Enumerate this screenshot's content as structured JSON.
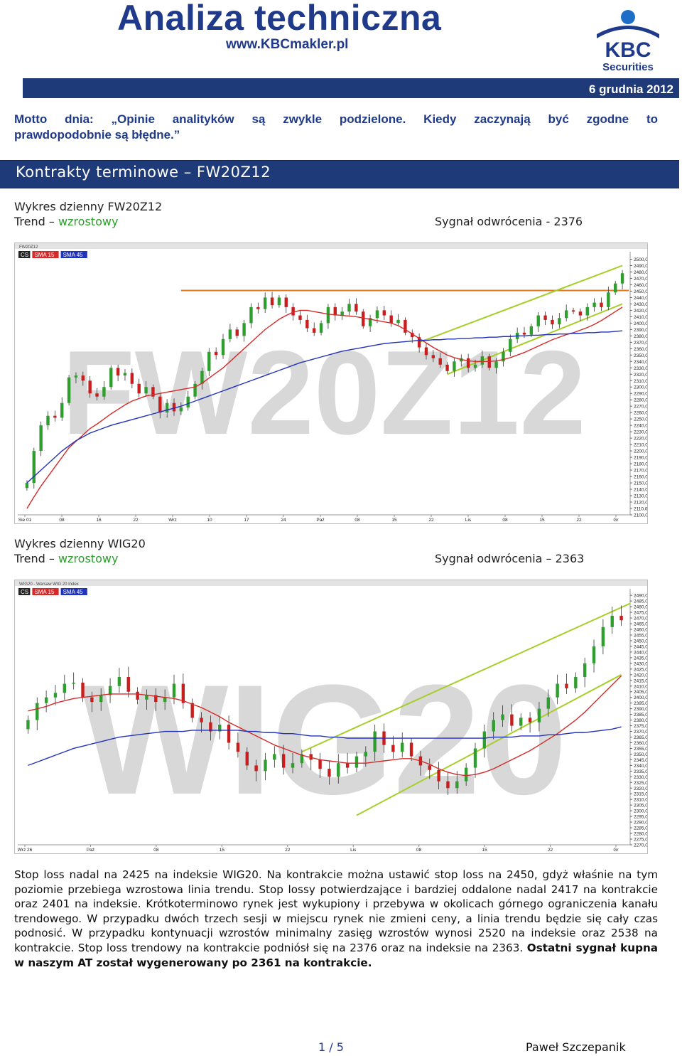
{
  "header": {
    "title": "Analiza techniczna",
    "url": "www.KBCmakler.pl",
    "logo_text": "KBC",
    "logo_sub": "Securities",
    "date": "6 grudnia 2012"
  },
  "motto": {
    "line1": "Motto dnia: „Opinie analityków są zwykle podzielone. Kiedy zaczynają być zgodne to",
    "line2": "prawdopodobnie są błędne.”"
  },
  "section": {
    "title": "Kontrakty terminowe – FW20Z12"
  },
  "chart1_caption": {
    "heading": "Wykres dzienny FW20Z12",
    "trend_label": "Trend –",
    "trend_value": "wzrostowy",
    "signal": "Sygnał odwrócenia - 2376"
  },
  "chart2_caption": {
    "heading": "Wykres dzienny WIG20",
    "trend_label": "Trend –",
    "trend_value": "wzrostowy",
    "signal": "Sygnał odwrócenia – 2363"
  },
  "body": {
    "text": "Stop loss nadal na 2425 na indeksie WIG20. Na kontrakcie można ustawić stop loss na 2450, gdyż właśnie na tym poziomie przebiega wzrostowa linia trendu. Stop lossy potwierdzające i bardziej oddalone nadal 2417 na kontrakcie oraz 2401 na indeksie. Krótkoterminowo rynek jest wykupiony i przebywa w okolicach górnego ograniczenia kanału trendowego. W przypadku dwóch trzech sesji w miejscu rynek nie zmieni ceny, a linia trendu będzie się cały czas podnosić. W przypadku kontynuacji wzrostów minimalny zasięg wzrostów wynosi 2520 na indeksie oraz 2538 na kontrakcie. Stop loss trendowy na kontrakcie podniósł się na 2376 oraz na indeksie na 2363. ",
    "bold": "Ostatni sygnał kupna w naszym AT został wygenerowany po 2361 na kontrakcie."
  },
  "footer": {
    "page": "1 / 5",
    "author": "Paweł Szczepanik"
  },
  "colors": {
    "brand": "#1e3a78",
    "trend_green": "#2aa02a",
    "candle_up": "#2e9e2e",
    "candle_down": "#c81e1e",
    "sma15": "#d42a2a",
    "sma45": "#2233bb",
    "channel": "#a6cf2a"
  },
  "chart_data": [
    {
      "type": "candlestick",
      "title": "FW20Z12",
      "watermark": "FW20Z12",
      "legend": [
        "CS",
        "SMA 15",
        "SMA 45"
      ],
      "x_ticks": [
        "Sie 01",
        "08",
        "16",
        "22",
        "Wrz",
        "10",
        "17",
        "24",
        "Paź",
        "08",
        "15",
        "22",
        "Lis",
        "08",
        "15",
        "22",
        "Gr"
      ],
      "y_ticks": [
        2500,
        2490,
        2480,
        2470,
        2460,
        2450,
        2440,
        2430,
        2420,
        2410,
        2400,
        2390,
        2380,
        2370,
        2360,
        2350,
        2340,
        2330,
        2320,
        2310,
        2300,
        2290,
        2280,
        2270,
        2260,
        2250,
        2240,
        2230,
        2220,
        2210,
        2200,
        2190,
        2180,
        2170,
        2160,
        2150,
        2140,
        2130,
        2120,
        2110,
        2100
      ],
      "ylim": [
        2100,
        2505
      ],
      "horizontal_level": 2451,
      "close": [
        2150,
        2200,
        2240,
        2255,
        2252,
        2275,
        2315,
        2318,
        2310,
        2290,
        2285,
        2300,
        2330,
        2318,
        2322,
        2305,
        2290,
        2300,
        2285,
        2260,
        2275,
        2262,
        2268,
        2285,
        2305,
        2325,
        2355,
        2350,
        2375,
        2390,
        2380,
        2400,
        2425,
        2422,
        2440,
        2428,
        2440,
        2425,
        2412,
        2405,
        2392,
        2385,
        2400,
        2425,
        2412,
        2418,
        2430,
        2418,
        2395,
        2408,
        2420,
        2412,
        2400,
        2405,
        2385,
        2378,
        2362,
        2350,
        2345,
        2335,
        2325,
        2340,
        2345,
        2330,
        2335,
        2348,
        2330,
        2340,
        2355,
        2375,
        2385,
        2382,
        2395,
        2412,
        2405,
        2398,
        2408,
        2420,
        2418,
        2412,
        2425,
        2432,
        2425,
        2448,
        2462,
        2478
      ],
      "sma15": [
        2110,
        2128,
        2145,
        2160,
        2175,
        2190,
        2205,
        2215,
        2225,
        2235,
        2242,
        2250,
        2258,
        2265,
        2272,
        2278,
        2282,
        2286,
        2288,
        2290,
        2292,
        2294,
        2296,
        2298,
        2300,
        2306,
        2314,
        2322,
        2330,
        2340,
        2350,
        2360,
        2370,
        2380,
        2390,
        2398,
        2406,
        2412,
        2417,
        2420,
        2420,
        2418,
        2416,
        2414,
        2413,
        2412,
        2411,
        2410,
        2408,
        2406,
        2404,
        2402,
        2400,
        2396,
        2390,
        2383,
        2376,
        2369,
        2362,
        2356,
        2350,
        2346,
        2343,
        2341,
        2340,
        2340,
        2340,
        2341,
        2343,
        2346,
        2350,
        2354,
        2359,
        2364,
        2369,
        2374,
        2378,
        2382,
        2385,
        2389,
        2393,
        2398,
        2404,
        2411,
        2418,
        2425
      ],
      "sma45": [
        2150,
        2160,
        2170,
        2180,
        2190,
        2200,
        2208,
        2216,
        2222,
        2228,
        2232,
        2236,
        2240,
        2243,
        2246,
        2249,
        2252,
        2255,
        2258,
        2261,
        2264,
        2267,
        2270,
        2274,
        2278,
        2282,
        2286,
        2290,
        2294,
        2298,
        2302,
        2306,
        2310,
        2314,
        2318,
        2322,
        2326,
        2330,
        2334,
        2338,
        2341,
        2344,
        2347,
        2350,
        2353,
        2356,
        2358,
        2360,
        2362,
        2364,
        2366,
        2368,
        2369,
        2370,
        2371,
        2372,
        2373,
        2373,
        2374,
        2374,
        2375,
        2375,
        2376,
        2376,
        2377,
        2377,
        2378,
        2378,
        2379,
        2379,
        2380,
        2380,
        2381,
        2381,
        2382,
        2382,
        2383,
        2383,
        2384,
        2384,
        2385,
        2385,
        2386,
        2386,
        2387,
        2388
      ]
    },
    {
      "type": "candlestick",
      "title": "WIG20 - Warsaw WIG 20 Index",
      "watermark": "WIG20",
      "legend": [
        "CS",
        "SMA 15",
        "SMA 45"
      ],
      "x_ticks": [
        "Wrz 26",
        "Paź",
        "08",
        "15",
        "22",
        "Lis",
        "08",
        "15",
        "22",
        "Gr"
      ],
      "y_ticks": [
        2490,
        2485,
        2480,
        2475,
        2470,
        2465,
        2460,
        2455,
        2450,
        2445,
        2440,
        2435,
        2430,
        2425,
        2420,
        2415,
        2410,
        2405,
        2400,
        2395,
        2390,
        2385,
        2380,
        2375,
        2370,
        2365,
        2360,
        2355,
        2350,
        2345,
        2340,
        2335,
        2330,
        2325,
        2320,
        2315,
        2310,
        2305,
        2300,
        2295,
        2290,
        2285,
        2280,
        2275,
        2270
      ],
      "ylim": [
        2270,
        2492
      ],
      "close": [
        2380,
        2395,
        2400,
        2404,
        2412,
        2413,
        2400,
        2396,
        2402,
        2410,
        2418,
        2405,
        2398,
        2402,
        2396,
        2400,
        2412,
        2395,
        2382,
        2378,
        2370,
        2376,
        2360,
        2352,
        2340,
        2335,
        2345,
        2350,
        2338,
        2342,
        2350,
        2345,
        2337,
        2330,
        2342,
        2338,
        2348,
        2352,
        2370,
        2358,
        2352,
        2360,
        2348,
        2340,
        2336,
        2326,
        2320,
        2326,
        2338,
        2355,
        2370,
        2380,
        2385,
        2375,
        2382,
        2378,
        2390,
        2400,
        2412,
        2408,
        2418,
        2430,
        2445,
        2462,
        2472,
        2468
      ],
      "sma15": [
        2388,
        2390,
        2392,
        2395,
        2397,
        2399,
        2400,
        2401,
        2402,
        2403,
        2403,
        2403,
        2403,
        2402,
        2401,
        2400,
        2399,
        2397,
        2394,
        2391,
        2387,
        2383,
        2378,
        2374,
        2370,
        2366,
        2362,
        2358,
        2355,
        2352,
        2349,
        2347,
        2345,
        2344,
        2343,
        2342,
        2342,
        2342,
        2343,
        2344,
        2345,
        2346,
        2346,
        2344,
        2341,
        2337,
        2334,
        2332,
        2331,
        2332,
        2334,
        2337,
        2341,
        2345,
        2349,
        2353,
        2358,
        2363,
        2368,
        2374,
        2380,
        2387,
        2395,
        2403,
        2411,
        2419
      ],
      "sma45": [
        2340,
        2343,
        2346,
        2349,
        2352,
        2355,
        2357,
        2359,
        2361,
        2363,
        2365,
        2366,
        2367,
        2368,
        2369,
        2370,
        2370,
        2370,
        2371,
        2371,
        2371,
        2371,
        2371,
        2371,
        2370,
        2370,
        2369,
        2369,
        2368,
        2368,
        2367,
        2366,
        2366,
        2365,
        2365,
        2364,
        2364,
        2364,
        2364,
        2364,
        2364,
        2364,
        2364,
        2364,
        2364,
        2364,
        2364,
        2364,
        2364,
        2364,
        2364,
        2365,
        2365,
        2365,
        2366,
        2366,
        2366,
        2367,
        2367,
        2368,
        2369,
        2369,
        2370,
        2371,
        2372,
        2374
      ]
    }
  ]
}
